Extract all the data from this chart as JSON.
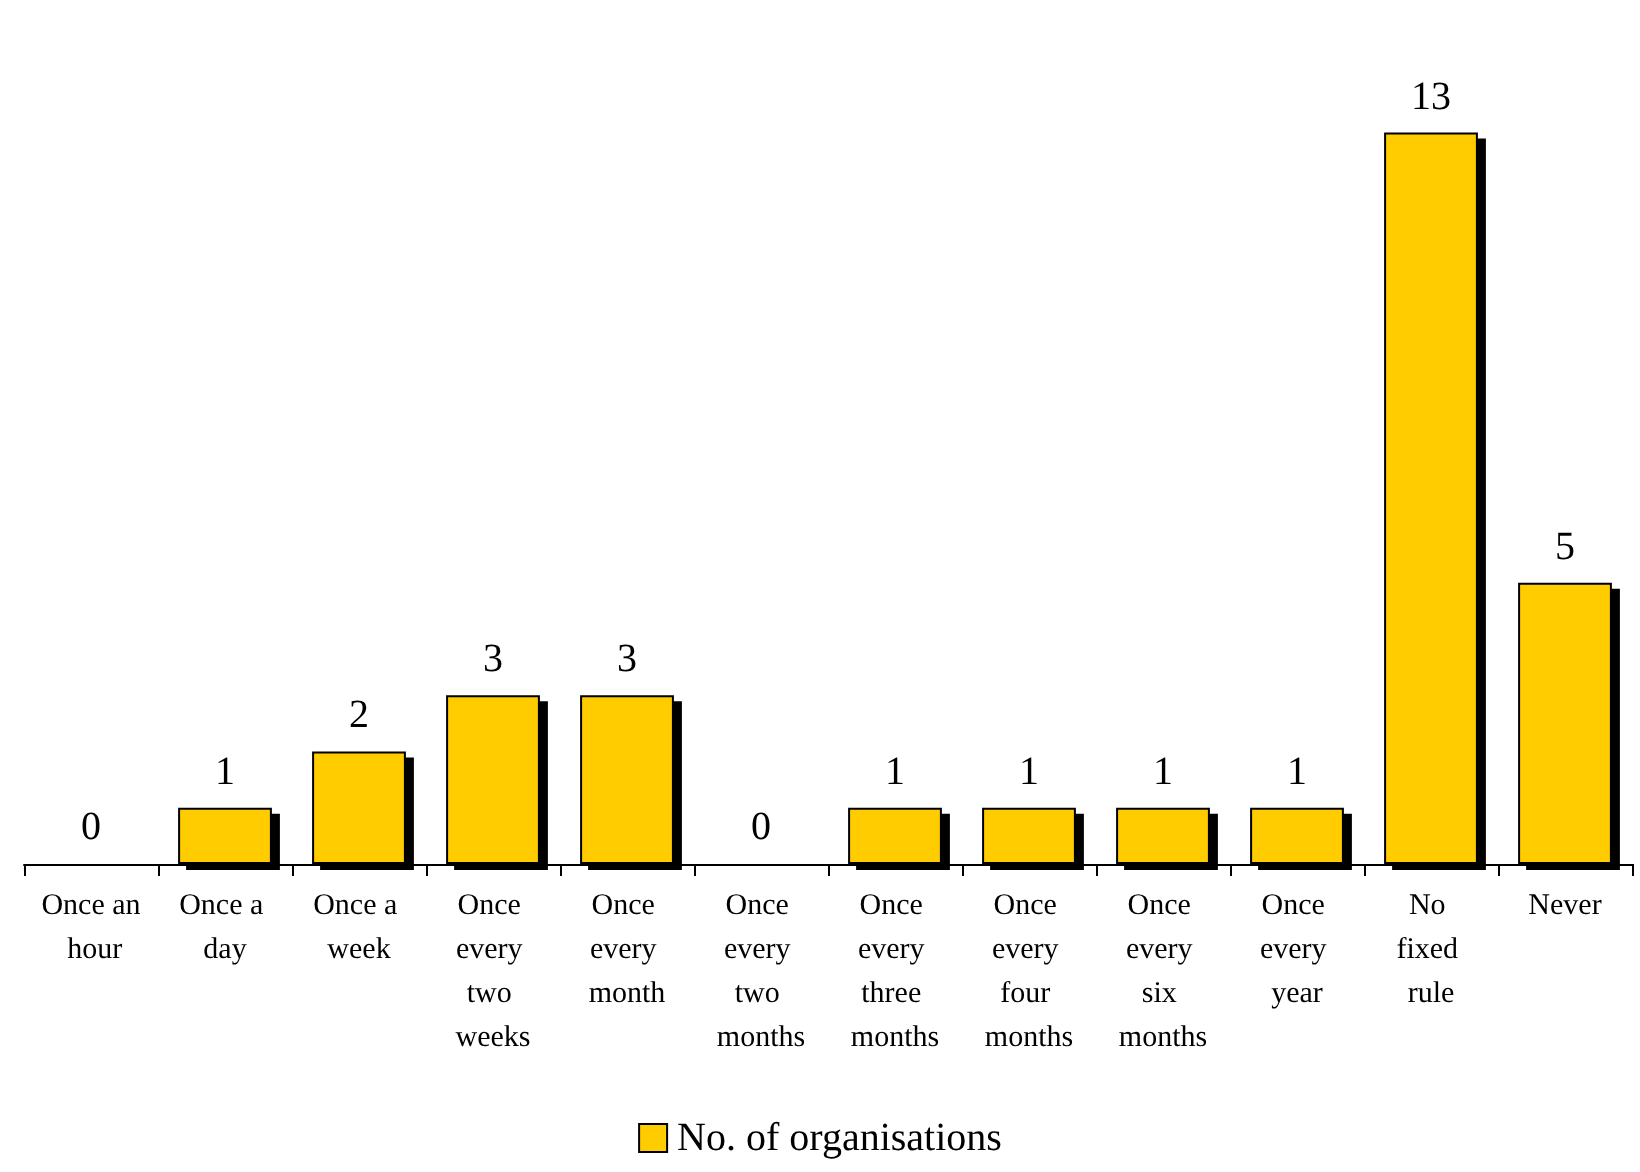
{
  "chart_data": {
    "type": "bar",
    "categories": [
      "Once an hour",
      "Once a day",
      "Once a week",
      "Once every two weeks",
      "Once every month",
      "Once every two months",
      "Once every three months",
      "Once every four months",
      "Once every six months",
      "Once every year",
      "No fixed rule",
      "Never"
    ],
    "series": [
      {
        "name": "No. of organisations",
        "color": "#ffcc00",
        "values": [
          0,
          1,
          2,
          3,
          3,
          0,
          1,
          1,
          1,
          1,
          13,
          5
        ]
      }
    ],
    "data_labels": true,
    "legend": "bottom"
  }
}
